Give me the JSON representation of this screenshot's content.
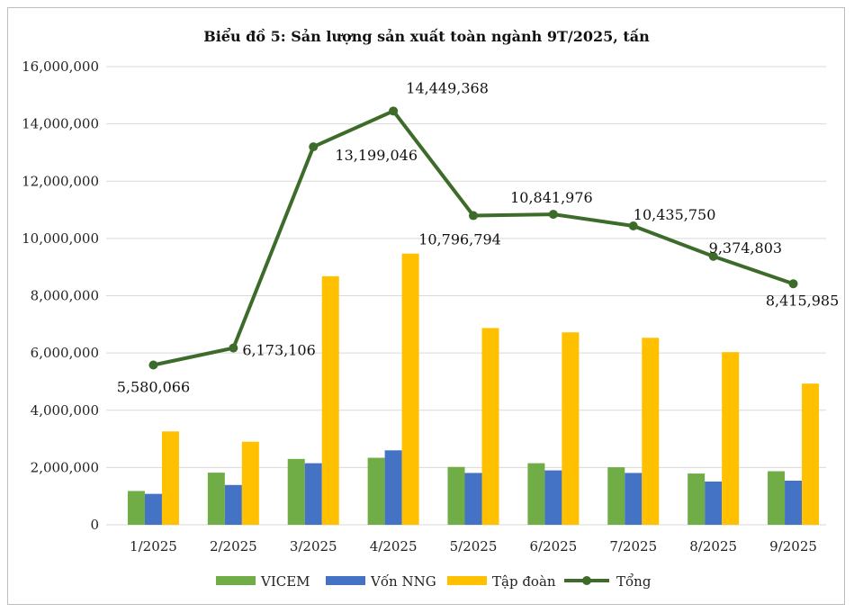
{
  "chart_data": {
    "type": "bar",
    "title": "Biểu đồ 5: Sản lượng sản xuất toàn ngành 9T/2025, tấn",
    "xlabel": "",
    "ylabel": "",
    "ylim": [
      0,
      16000000
    ],
    "yticks": [
      0,
      2000000,
      4000000,
      6000000,
      8000000,
      10000000,
      12000000,
      14000000,
      16000000
    ],
    "ytick_labels": [
      "0",
      "2,000,000",
      "4,000,000",
      "6,000,000",
      "8,000,000",
      "10,000,000",
      "12,000,000",
      "14,000,000",
      "16,000,000"
    ],
    "grid": true,
    "legend_position": "bottom",
    "categories": [
      "1/2025",
      "2/2025",
      "3/2025",
      "4/2025",
      "5/2025",
      "6/2025",
      "7/2025",
      "8/2025",
      "9/2025"
    ],
    "series": [
      {
        "name": "VICEM",
        "kind": "bar",
        "color": "#70ad47",
        "values": [
          1180000,
          1820000,
          2300000,
          2340000,
          2020000,
          2150000,
          2010000,
          1790000,
          1870000
        ]
      },
      {
        "name": "Vốn NNG",
        "kind": "bar",
        "color": "#4472c4",
        "values": [
          1080000,
          1390000,
          2150000,
          2600000,
          1810000,
          1900000,
          1810000,
          1510000,
          1540000
        ]
      },
      {
        "name": "Tập đoàn",
        "kind": "bar",
        "color": "#ffc000",
        "values": [
          3260000,
          2900000,
          8680000,
          9470000,
          6870000,
          6720000,
          6530000,
          6030000,
          4930000
        ]
      },
      {
        "name": "Tổng",
        "kind": "line",
        "color": "#3d6b2a",
        "values": [
          5580066,
          6173106,
          13199046,
          14449368,
          10796794,
          10841976,
          10435750,
          9374803,
          8415985
        ],
        "labels": [
          "5,580,066",
          "6,173,106",
          "13,199,046",
          "14,449,368",
          "10,796,794",
          "10,841,976",
          "10,435,750",
          "9,374,803",
          "8,415,985"
        ]
      }
    ]
  }
}
